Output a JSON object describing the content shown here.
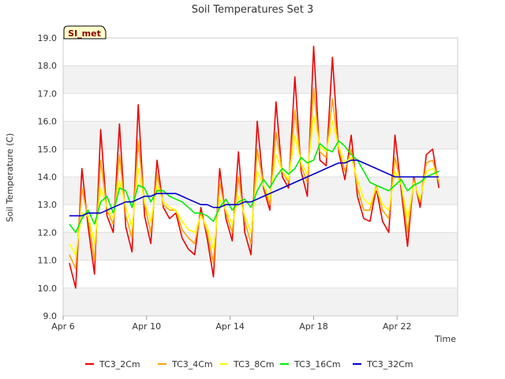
{
  "chart_data": {
    "type": "line",
    "title": "Soil Temperatures Set 3",
    "xlabel": "Time",
    "ylabel": "Soil Temperature (C)",
    "site_label": "SI_met",
    "ylim": [
      9.0,
      19.0
    ],
    "yticks": [
      "9.0",
      "10.0",
      "11.0",
      "12.0",
      "13.0",
      "14.0",
      "15.0",
      "16.0",
      "17.0",
      "18.0",
      "19.0"
    ],
    "xlim": [
      0,
      18.9
    ],
    "xticks": [
      {
        "label": "Apr 6",
        "x": 0
      },
      {
        "label": "Apr 10",
        "x": 4
      },
      {
        "label": "Apr 14",
        "x": 8
      },
      {
        "label": "Apr 18",
        "x": 12
      },
      {
        "label": "Apr 22",
        "x": 16
      }
    ],
    "x": [
      0.3,
      0.6,
      0.9,
      1.2,
      1.5,
      1.8,
      2.1,
      2.4,
      2.7,
      3.0,
      3.3,
      3.6,
      3.9,
      4.2,
      4.5,
      4.8,
      5.1,
      5.4,
      5.7,
      6.0,
      6.3,
      6.6,
      6.9,
      7.2,
      7.5,
      7.8,
      8.1,
      8.4,
      8.7,
      9.0,
      9.3,
      9.6,
      9.9,
      10.2,
      10.5,
      10.8,
      11.1,
      11.4,
      11.7,
      12.0,
      12.3,
      12.6,
      12.9,
      13.2,
      13.5,
      13.8,
      14.1,
      14.4,
      14.7,
      15.0,
      15.3,
      15.6,
      15.9,
      16.2,
      16.5,
      16.8,
      17.1,
      17.4,
      17.7,
      18.0
    ],
    "series": [
      {
        "name": "TC3_2Cm",
        "color": "#ee0000",
        "values": [
          10.9,
          10.0,
          14.3,
          12.2,
          10.5,
          15.7,
          12.6,
          12.0,
          15.9,
          12.2,
          11.3,
          16.6,
          12.6,
          11.6,
          14.6,
          12.9,
          12.5,
          12.7,
          11.8,
          11.4,
          11.2,
          12.9,
          11.8,
          10.4,
          14.3,
          12.5,
          11.7,
          14.9,
          12.0,
          11.2,
          16.0,
          13.6,
          12.8,
          16.7,
          14.0,
          13.6,
          17.6,
          14.2,
          13.3,
          18.7,
          14.6,
          14.4,
          18.3,
          14.9,
          13.9,
          15.5,
          13.3,
          12.5,
          12.4,
          13.6,
          12.4,
          12.0,
          15.5,
          13.5,
          11.5,
          14.0,
          12.9,
          14.8,
          15.0,
          13.6
        ]
      },
      {
        "name": "TC3_4Cm",
        "color": "#ffa500",
        "values": [
          11.2,
          10.7,
          13.6,
          12.5,
          11.0,
          14.6,
          12.8,
          12.3,
          14.8,
          12.6,
          11.8,
          15.3,
          13.0,
          12.0,
          14.1,
          13.0,
          12.8,
          12.8,
          12.1,
          11.8,
          11.6,
          12.7,
          12.0,
          10.9,
          13.8,
          12.7,
          12.0,
          14.0,
          12.4,
          11.6,
          15.0,
          13.7,
          13.0,
          15.6,
          14.2,
          13.8,
          16.4,
          14.4,
          13.8,
          17.2,
          14.9,
          14.7,
          16.8,
          15.0,
          14.2,
          15.0,
          13.6,
          12.8,
          12.8,
          13.7,
          12.8,
          12.5,
          14.7,
          13.7,
          12.0,
          13.9,
          13.1,
          14.5,
          14.6,
          13.8
        ]
      },
      {
        "name": "TC3_8Cm",
        "color": "#ffff00",
        "values": [
          11.6,
          11.2,
          12.7,
          12.6,
          11.6,
          13.6,
          12.9,
          12.5,
          13.9,
          12.9,
          12.2,
          14.3,
          13.1,
          12.4,
          13.7,
          13.1,
          12.9,
          12.8,
          12.4,
          12.1,
          12.0,
          12.6,
          12.2,
          11.4,
          13.2,
          12.8,
          12.3,
          13.3,
          12.6,
          12.0,
          14.2,
          13.7,
          13.2,
          14.8,
          14.2,
          13.9,
          15.5,
          14.5,
          14.1,
          16.2,
          15.1,
          14.9,
          16.0,
          15.1,
          14.5,
          14.7,
          13.9,
          13.2,
          13.0,
          13.6,
          13.0,
          12.8,
          14.2,
          13.7,
          12.5,
          13.8,
          13.2,
          14.2,
          14.3,
          13.9
        ]
      },
      {
        "name": "TC3_16Cm",
        "color": "#00ee00",
        "values": [
          12.3,
          12.0,
          12.5,
          12.8,
          12.3,
          13.1,
          13.3,
          12.7,
          13.6,
          13.5,
          12.9,
          13.7,
          13.6,
          13.1,
          13.5,
          13.5,
          13.3,
          13.2,
          13.1,
          12.9,
          12.7,
          12.7,
          12.6,
          12.4,
          12.9,
          13.2,
          12.8,
          13.1,
          13.2,
          12.9,
          13.5,
          13.9,
          13.6,
          14.0,
          14.3,
          14.1,
          14.3,
          14.7,
          14.5,
          14.6,
          15.2,
          15.0,
          14.9,
          15.3,
          15.1,
          14.8,
          14.6,
          14.2,
          13.8,
          13.7,
          13.6,
          13.5,
          13.7,
          13.9,
          13.5,
          13.7,
          13.8,
          14.0,
          14.1,
          14.2
        ]
      },
      {
        "name": "TC3_32Cm",
        "color": "#0000cc",
        "values": [
          12.6,
          12.6,
          12.6,
          12.7,
          12.7,
          12.7,
          12.8,
          12.9,
          13.0,
          13.1,
          13.1,
          13.2,
          13.3,
          13.3,
          13.4,
          13.4,
          13.4,
          13.4,
          13.3,
          13.2,
          13.1,
          13.0,
          13.0,
          12.9,
          12.9,
          13.0,
          13.0,
          13.0,
          13.1,
          13.1,
          13.2,
          13.3,
          13.4,
          13.5,
          13.6,
          13.7,
          13.8,
          13.9,
          14.0,
          14.1,
          14.2,
          14.3,
          14.4,
          14.5,
          14.5,
          14.6,
          14.6,
          14.5,
          14.4,
          14.3,
          14.2,
          14.1,
          14.0,
          14.0,
          14.0,
          14.0,
          14.0,
          14.0,
          14.0,
          14.0
        ]
      }
    ]
  }
}
